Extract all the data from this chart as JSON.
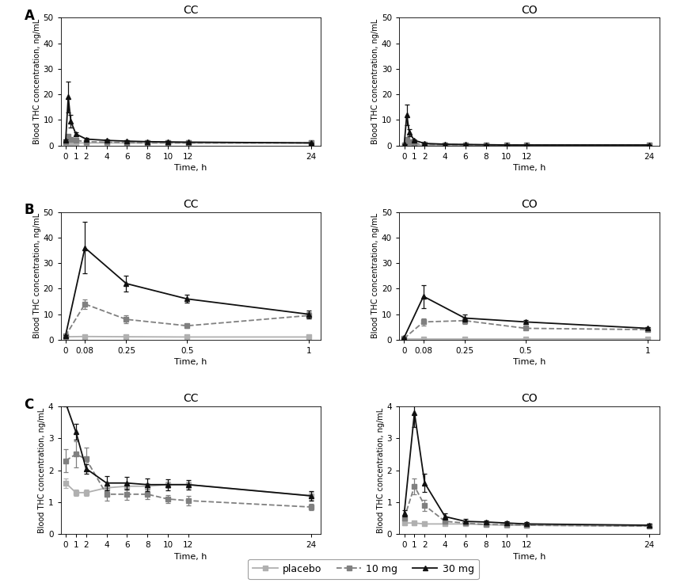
{
  "panels": {
    "A_CC": {
      "title": "CC",
      "panel_label": "A",
      "x_ticks": [
        0,
        1,
        2,
        4,
        6,
        8,
        10,
        12,
        24
      ],
      "xlim": [
        -0.5,
        25
      ],
      "x_label": "Time, h",
      "y_label": "Blood THC concentration, ng/mL",
      "ylim": [
        0,
        50
      ],
      "y_ticks": [
        0,
        10,
        20,
        30,
        40,
        50
      ],
      "placebo": {
        "x": [
          0,
          0.25,
          0.5,
          1,
          2,
          4,
          6,
          8,
          10,
          12,
          24
        ],
        "y": [
          1.2,
          1.2,
          1.1,
          1.0,
          1.0,
          1.0,
          1.0,
          1.0,
          1.0,
          1.0,
          1.0
        ],
        "yerr": [
          0.2,
          0.1,
          0.1,
          0.1,
          0.1,
          0.1,
          0.1,
          0.1,
          0.05,
          0.05,
          0.05
        ]
      },
      "mg10": {
        "x": [
          0,
          0.25,
          0.5,
          1,
          2,
          4,
          6,
          8,
          10,
          12,
          24
        ],
        "y": [
          1.5,
          3.5,
          2.5,
          2.0,
          1.5,
          1.3,
          1.1,
          1.0,
          1.0,
          1.0,
          1.0
        ],
        "yerr": [
          0.2,
          0.8,
          0.5,
          0.3,
          0.2,
          0.15,
          0.1,
          0.1,
          0.05,
          0.05,
          0.05
        ]
      },
      "mg30": {
        "x": [
          0,
          0.25,
          0.5,
          1,
          2,
          4,
          6,
          8,
          10,
          12,
          24
        ],
        "y": [
          2.0,
          19.0,
          9.5,
          4.5,
          2.5,
          2.0,
          1.7,
          1.5,
          1.4,
          1.3,
          1.0
        ],
        "yerr": [
          0.3,
          6.0,
          2.5,
          0.8,
          0.4,
          0.3,
          0.3,
          0.2,
          0.2,
          0.2,
          0.1
        ]
      }
    },
    "A_CO": {
      "title": "CO",
      "panel_label": "",
      "x_ticks": [
        0,
        1,
        2,
        4,
        6,
        8,
        10,
        12,
        24
      ],
      "xlim": [
        -0.5,
        25
      ],
      "x_label": "Time, h",
      "y_label": "Blood THC concentration, ng/mL",
      "ylim": [
        0,
        50
      ],
      "y_ticks": [
        0,
        10,
        20,
        30,
        40,
        50
      ],
      "placebo": {
        "x": [
          0,
          0.25,
          0.5,
          1,
          2,
          4,
          6,
          8,
          10,
          12,
          24
        ],
        "y": [
          0.2,
          0.2,
          0.2,
          0.2,
          0.2,
          0.2,
          0.2,
          0.1,
          0.1,
          0.1,
          0.1
        ],
        "yerr": [
          0.05,
          0.05,
          0.05,
          0.05,
          0.05,
          0.05,
          0.05,
          0.05,
          0.03,
          0.03,
          0.03
        ]
      },
      "mg10": {
        "x": [
          0,
          0.25,
          0.5,
          1,
          2,
          4,
          6,
          8,
          10,
          12,
          24
        ],
        "y": [
          0.3,
          2.5,
          1.5,
          0.8,
          0.4,
          0.3,
          0.3,
          0.2,
          0.2,
          0.2,
          0.1
        ],
        "yerr": [
          0.05,
          0.5,
          0.3,
          0.15,
          0.08,
          0.05,
          0.05,
          0.03,
          0.03,
          0.03,
          0.03
        ]
      },
      "mg30": {
        "x": [
          0,
          0.25,
          0.5,
          1,
          2,
          4,
          6,
          8,
          10,
          12,
          24
        ],
        "y": [
          0.5,
          12.0,
          5.0,
          2.0,
          0.8,
          0.5,
          0.4,
          0.3,
          0.2,
          0.2,
          0.2
        ],
        "yerr": [
          0.1,
          4.0,
          1.5,
          0.4,
          0.15,
          0.1,
          0.08,
          0.05,
          0.03,
          0.03,
          0.03
        ]
      }
    },
    "B_CC": {
      "title": "CC",
      "panel_label": "B",
      "x_ticks": [
        0,
        0.08,
        0.25,
        0.5,
        1
      ],
      "xlim": [
        -0.02,
        1.05
      ],
      "x_label": "Time, h",
      "y_label": "Blood THC concentration, ng/mL",
      "ylim": [
        0,
        50
      ],
      "y_ticks": [
        0,
        10,
        20,
        30,
        40,
        50
      ],
      "placebo": {
        "x": [
          0,
          0.08,
          0.25,
          0.5,
          1
        ],
        "y": [
          1.2,
          1.3,
          1.2,
          1.1,
          1.1
        ],
        "yerr": [
          0.1,
          0.2,
          0.1,
          0.1,
          0.1
        ]
      },
      "mg10": {
        "x": [
          0,
          0.08,
          0.25,
          0.5,
          1
        ],
        "y": [
          1.5,
          14.0,
          8.0,
          5.5,
          9.5
        ],
        "yerr": [
          0.2,
          1.8,
          1.5,
          0.8,
          1.2
        ]
      },
      "mg30": {
        "x": [
          0,
          0.08,
          0.25,
          0.5,
          1
        ],
        "y": [
          1.5,
          36.0,
          22.0,
          16.0,
          10.0
        ],
        "yerr": [
          0.2,
          10.0,
          3.0,
          1.5,
          1.5
        ]
      }
    },
    "B_CO": {
      "title": "CO",
      "panel_label": "",
      "x_ticks": [
        0,
        0.08,
        0.25,
        0.5,
        1
      ],
      "xlim": [
        -0.02,
        1.05
      ],
      "x_label": "Time, h",
      "y_label": "Blood THC concentration, ng/mL",
      "ylim": [
        0,
        50
      ],
      "y_ticks": [
        0,
        10,
        20,
        30,
        40,
        50
      ],
      "placebo": {
        "x": [
          0,
          0.08,
          0.25,
          0.5,
          1
        ],
        "y": [
          0.3,
          0.3,
          0.3,
          0.3,
          0.3
        ],
        "yerr": [
          0.05,
          0.05,
          0.05,
          0.05,
          0.05
        ]
      },
      "mg10": {
        "x": [
          0,
          0.08,
          0.25,
          0.5,
          1
        ],
        "y": [
          0.5,
          7.0,
          7.5,
          4.5,
          4.0
        ],
        "yerr": [
          0.05,
          1.5,
          1.2,
          0.5,
          0.4
        ]
      },
      "mg30": {
        "x": [
          0,
          0.08,
          0.25,
          0.5,
          1
        ],
        "y": [
          0.8,
          17.0,
          8.5,
          7.0,
          4.5
        ],
        "yerr": [
          0.1,
          4.5,
          1.5,
          0.8,
          0.5
        ]
      }
    },
    "C_CC": {
      "title": "CC",
      "panel_label": "C",
      "x_ticks": [
        0,
        1,
        2,
        4,
        6,
        8,
        10,
        12,
        24
      ],
      "xlim": [
        -0.5,
        25
      ],
      "x_label": "Time, h",
      "y_label": "Blood THC concentration, ng/mL",
      "ylim": [
        0,
        4
      ],
      "y_ticks": [
        0,
        1,
        2,
        3,
        4
      ],
      "placebo": {
        "x": [
          0,
          1,
          2,
          4,
          6,
          8,
          10,
          12,
          24
        ],
        "y": [
          1.6,
          1.3,
          1.3,
          1.45,
          1.5,
          1.5,
          1.55,
          1.55,
          1.2
        ],
        "yerr": [
          0.15,
          0.1,
          0.1,
          0.1,
          0.1,
          0.1,
          0.1,
          0.1,
          0.12
        ]
      },
      "mg10": {
        "x": [
          0,
          1,
          2,
          4,
          6,
          8,
          10,
          12,
          24
        ],
        "y": [
          2.3,
          2.5,
          2.35,
          1.25,
          1.25,
          1.25,
          1.1,
          1.05,
          0.85
        ],
        "yerr": [
          0.35,
          0.4,
          0.35,
          0.2,
          0.18,
          0.15,
          0.12,
          0.15,
          0.1
        ]
      },
      "mg30": {
        "x": [
          0,
          1,
          2,
          4,
          6,
          8,
          10,
          12,
          24
        ],
        "y": [
          4.1,
          3.2,
          2.05,
          1.6,
          1.6,
          1.55,
          1.55,
          1.55,
          1.2
        ],
        "yerr": [
          0.1,
          0.25,
          0.15,
          0.22,
          0.2,
          0.2,
          0.18,
          0.15,
          0.15
        ]
      }
    },
    "C_CO": {
      "title": "CO",
      "panel_label": "",
      "x_ticks": [
        0,
        1,
        2,
        4,
        6,
        8,
        10,
        12,
        24
      ],
      "xlim": [
        -0.5,
        25
      ],
      "x_label": "Time, h",
      "y_label": "Blood THC concentration, ng/mL",
      "ylim": [
        0,
        4
      ],
      "y_ticks": [
        0,
        1,
        2,
        3,
        4
      ],
      "placebo": {
        "x": [
          0,
          1,
          2,
          4,
          6,
          8,
          10,
          12,
          24
        ],
        "y": [
          0.35,
          0.35,
          0.32,
          0.32,
          0.32,
          0.3,
          0.28,
          0.28,
          0.25
        ],
        "yerr": [
          0.06,
          0.06,
          0.05,
          0.05,
          0.04,
          0.04,
          0.04,
          0.04,
          0.04
        ]
      },
      "mg10": {
        "x": [
          0,
          1,
          2,
          4,
          6,
          8,
          10,
          12,
          24
        ],
        "y": [
          0.5,
          1.5,
          0.9,
          0.4,
          0.35,
          0.3,
          0.3,
          0.28,
          0.25
        ],
        "yerr": [
          0.08,
          0.25,
          0.18,
          0.06,
          0.05,
          0.05,
          0.04,
          0.04,
          0.04
        ]
      },
      "mg30": {
        "x": [
          0,
          1,
          2,
          4,
          6,
          8,
          10,
          12,
          24
        ],
        "y": [
          0.65,
          3.8,
          1.6,
          0.55,
          0.4,
          0.38,
          0.35,
          0.32,
          0.28
        ],
        "yerr": [
          0.1,
          0.45,
          0.28,
          0.1,
          0.07,
          0.06,
          0.05,
          0.05,
          0.04
        ]
      }
    }
  },
  "colors": {
    "placebo": "#b0b0b0",
    "mg10": "#808080",
    "mg30": "#101010"
  },
  "linestyles": {
    "placebo": "-",
    "mg10": "--",
    "mg30": "-"
  },
  "markers": {
    "placebo": "s",
    "mg10": "s",
    "mg30": "^"
  },
  "marker_fc": {
    "placebo": "#b0b0b0",
    "mg10": "#808080",
    "mg30": "#101010"
  },
  "legend_labels": {
    "placebo": "placebo",
    "mg10": "10 mg",
    "mg30": "30 mg"
  },
  "markersize": 4,
  "linewidth": 1.3,
  "elinewidth": 0.9,
  "capsize": 2
}
